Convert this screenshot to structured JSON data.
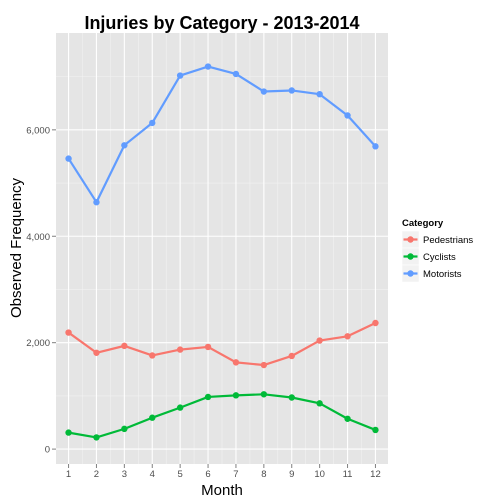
{
  "chart_data": {
    "type": "line",
    "title": "Injuries by Category - 2013-2014",
    "xlabel": "Month",
    "ylabel": "Observed Frequency",
    "x": [
      1,
      2,
      3,
      4,
      5,
      6,
      7,
      8,
      9,
      10,
      11,
      12
    ],
    "x_ticks": [
      "1",
      "2",
      "3",
      "4",
      "5",
      "6",
      "7",
      "8",
      "9",
      "10",
      "11",
      "12"
    ],
    "xlim": [
      0.55,
      12.45
    ],
    "ylim": [
      -280,
      7820
    ],
    "y_ticks": [
      0,
      2000,
      4000,
      6000
    ],
    "y_tick_labels": [
      "0",
      "2,000",
      "4,000",
      "6,000"
    ],
    "grid": true,
    "legend": {
      "title": "Category",
      "position": "right"
    },
    "series": [
      {
        "name": "Pedestrians",
        "color": "#F8766D",
        "values": [
          2190,
          1810,
          1940,
          1760,
          1870,
          1920,
          1630,
          1580,
          1750,
          2040,
          2120,
          2370
        ]
      },
      {
        "name": "Cyclists",
        "color": "#00BA38",
        "values": [
          310,
          220,
          380,
          590,
          780,
          980,
          1010,
          1030,
          970,
          860,
          570,
          360
        ]
      },
      {
        "name": "Motorists",
        "color": "#619CFF",
        "values": [
          5460,
          4640,
          5710,
          6130,
          7020,
          7190,
          7050,
          6720,
          6740,
          6670,
          6270,
          5690
        ]
      }
    ]
  }
}
